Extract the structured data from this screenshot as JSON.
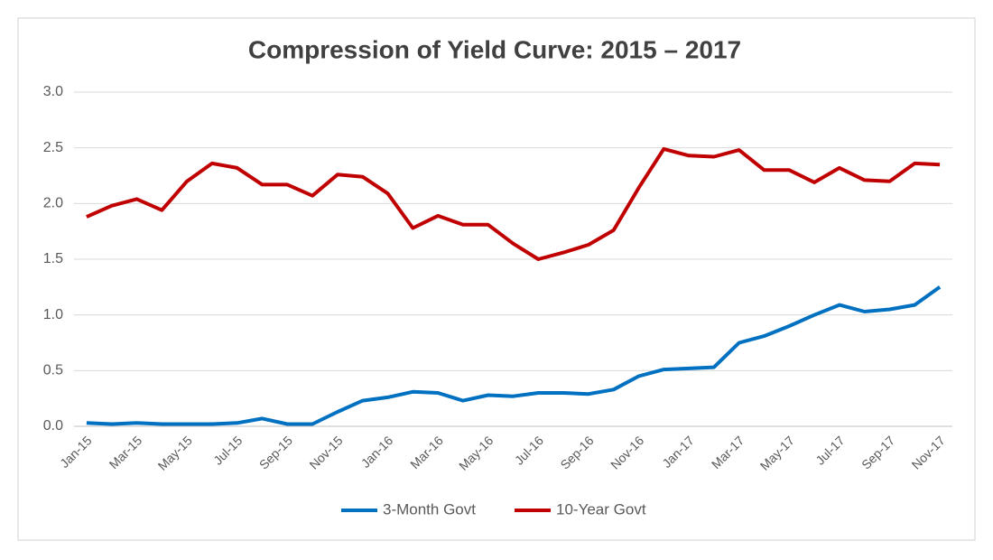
{
  "chart_data": {
    "type": "line",
    "title": "Compression of Yield Curve:  2015 – 2017",
    "categories": [
      "Jan-15",
      null,
      "Mar-15",
      null,
      "May-15",
      null,
      "Jul-15",
      null,
      "Sep-15",
      null,
      "Nov-15",
      null,
      "Jan-16",
      null,
      "Mar-16",
      null,
      "May-16",
      null,
      "Jul-16",
      null,
      "Sep-16",
      null,
      "Nov-16",
      null,
      "Jan-17",
      null,
      "Mar-17",
      null,
      "May-17",
      null,
      "Jul-17",
      null,
      "Sep-17",
      null,
      "Nov-17"
    ],
    "series": [
      {
        "name": "3-Month Govt",
        "color": "#0070c0",
        "values": [
          0.03,
          0.02,
          0.03,
          0.02,
          0.02,
          0.02,
          0.03,
          0.07,
          0.02,
          0.02,
          0.13,
          0.23,
          0.26,
          0.31,
          0.3,
          0.23,
          0.28,
          0.27,
          0.3,
          0.3,
          0.29,
          0.33,
          0.45,
          0.51,
          0.52,
          0.53,
          0.75,
          0.81,
          0.9,
          1.0,
          1.09,
          1.03,
          1.05,
          1.09,
          1.25
        ]
      },
      {
        "name": "10-Year Govt",
        "color": "#c00000",
        "values": [
          1.88,
          1.98,
          2.04,
          1.94,
          2.2,
          2.36,
          2.32,
          2.17,
          2.17,
          2.07,
          2.26,
          2.24,
          2.09,
          1.78,
          1.89,
          1.81,
          1.81,
          1.64,
          1.5,
          1.56,
          1.63,
          1.76,
          2.14,
          2.49,
          2.43,
          2.42,
          2.48,
          2.3,
          2.3,
          2.19,
          2.32,
          2.21,
          2.2,
          2.36,
          2.35
        ]
      }
    ],
    "ylim": [
      0,
      3
    ],
    "yticks": [
      {
        "value": 0,
        "label": "0.0"
      },
      0.5,
      {
        "value": 1,
        "label": "1.0"
      },
      1.5,
      {
        "value": 2,
        "label": "2.0"
      },
      2.5,
      {
        "value": 3,
        "label": "3.0"
      }
    ],
    "grid": true,
    "legend": "bottom"
  }
}
